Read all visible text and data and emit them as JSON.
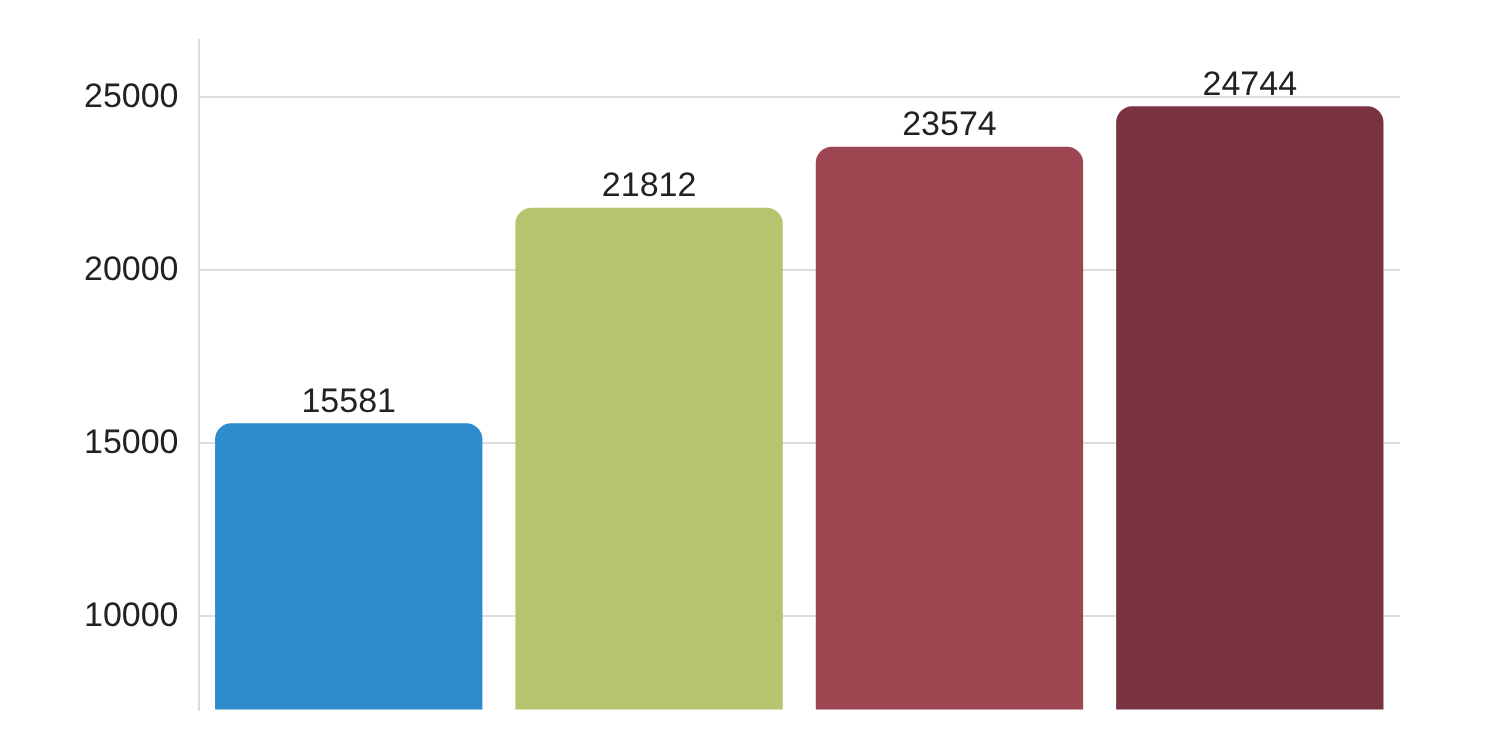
{
  "chart_data": {
    "type": "bar",
    "categories": [
      null,
      null,
      null,
      null
    ],
    "values": [
      15581,
      21812,
      23574,
      24744
    ],
    "colors": [
      "#2e8bcc",
      "#b5c46f",
      "#9e4552",
      "#7a3340"
    ],
    "ylim": [
      7300,
      26650
    ],
    "yticks": [
      10000,
      15000,
      20000,
      25000
    ],
    "grid": "y",
    "tick_labels": "y",
    "data_labels": true,
    "legend": false
  }
}
